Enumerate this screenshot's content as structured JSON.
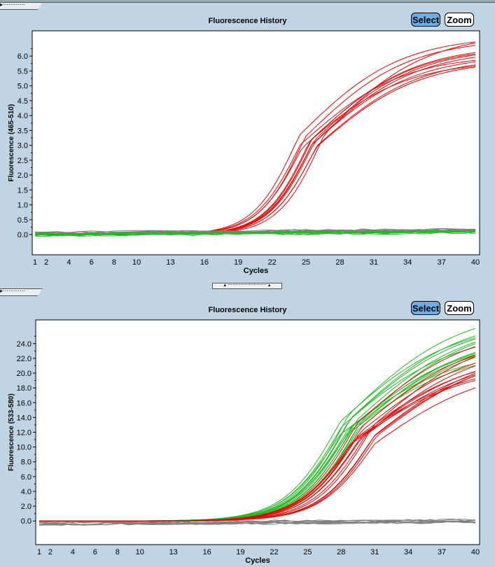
{
  "panels": [
    {
      "title": "Fluorescence History",
      "select_label": "Select",
      "zoom_label": "Zoom"
    },
    {
      "title": "Fluorescence History",
      "select_label": "Select",
      "zoom_label": "Zoom"
    }
  ],
  "chart_data": [
    {
      "type": "line",
      "title": "Fluorescence History",
      "xlabel": "Cycles",
      "ylabel": "Fluorescence (465-510)",
      "xticks": [
        1,
        2,
        4,
        6,
        8,
        10,
        13,
        16,
        19,
        22,
        25,
        28,
        31,
        34,
        37,
        40
      ],
      "yticks": [
        0.0,
        0.5,
        1.0,
        1.5,
        2.0,
        2.5,
        3.0,
        3.5,
        4.0,
        4.5,
        5.0,
        5.5,
        6.0
      ],
      "ylim": [
        -0.68,
        6.85
      ],
      "xlim": [
        1,
        40
      ],
      "groups": [
        {
          "color": "#ee0000",
          "count": 12,
          "plateau": 6.3,
          "midpoint": 25.5,
          "slope_low": 2.0,
          "slope_high": 4.5,
          "spread_mid": 1.3,
          "spread_plateau": 0.5
        },
        {
          "color": "#808080",
          "count": 10,
          "flat_start": 0.05,
          "flat_end": 0.15
        },
        {
          "color": "#22bb22",
          "count": 8,
          "flat_start": 0.0,
          "flat_end": 0.1
        }
      ]
    },
    {
      "type": "line",
      "title": "Fluorescence History",
      "xlabel": "Cycles",
      "ylabel": "Fluorescence (533-580)",
      "xticks": [
        1,
        2,
        4,
        6,
        8,
        10,
        13,
        16,
        19,
        22,
        25,
        28,
        31,
        34,
        37,
        40
      ],
      "yticks": [
        0.0,
        2.0,
        4.0,
        6.0,
        8.0,
        10.0,
        12.0,
        14.0,
        16.0,
        18.0,
        20.0,
        22.0,
        24.0
      ],
      "ylim": [
        -3.2,
        27.2
      ],
      "xlim": [
        1,
        40
      ],
      "groups": [
        {
          "color": "#808080",
          "count": 10,
          "flat_start": -0.3,
          "flat_end": 0.0
        },
        {
          "color": "#22bb22",
          "count": 14,
          "plateau": 26,
          "midpoint": 29,
          "slope_low": 2.5,
          "slope_high": 5.0,
          "spread_mid": 1.2,
          "spread_plateau": 3
        },
        {
          "color": "#ee0000",
          "count": 14,
          "plateau": 24,
          "midpoint": 30,
          "slope_low": 2.5,
          "slope_high": 5.0,
          "spread_mid": 1.2,
          "spread_plateau": 3
        }
      ]
    }
  ]
}
